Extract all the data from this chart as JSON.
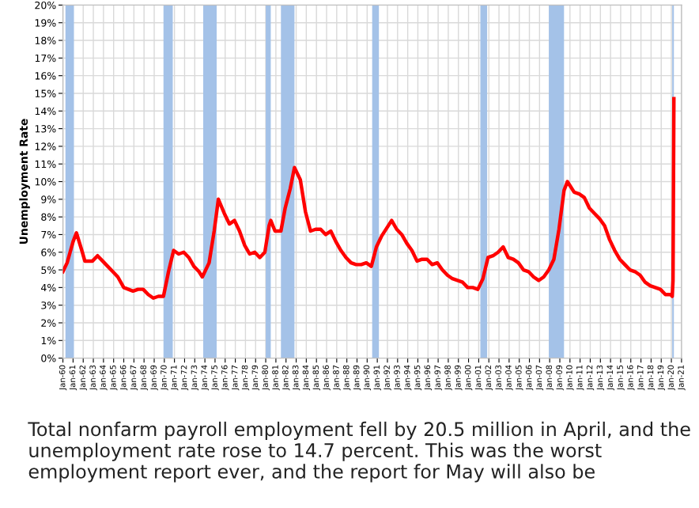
{
  "chart_data": {
    "type": "line",
    "ylabel": "Unemployment Rate",
    "annotations": [
      "Total nonfarm payroll employment fell by 20.5 million in April, and the unemployment rate rose to 14.7 percent. This was the worst employment report ever, and the report for May will also be"
    ],
    "x": [
      "1960-01",
      "1960-06",
      "1961-01",
      "1961-05",
      "1961-12",
      "1962-03",
      "1962-12",
      "1963-06",
      "1963-12",
      "1964-06",
      "1964-12",
      "1965-06",
      "1966-01",
      "1966-12",
      "1967-06",
      "1967-12",
      "1968-06",
      "1968-12",
      "1969-06",
      "1969-12",
      "1970-06",
      "1970-12",
      "1971-06",
      "1971-12",
      "1972-06",
      "1972-12",
      "1973-06",
      "1973-10",
      "1974-06",
      "1974-12",
      "1975-05",
      "1975-12",
      "1976-06",
      "1976-12",
      "1977-06",
      "1977-12",
      "1978-06",
      "1978-12",
      "1979-06",
      "1979-12",
      "1980-05",
      "1980-07",
      "1980-12",
      "1981-07",
      "1981-12",
      "1982-06",
      "1982-11",
      "1983-06",
      "1983-12",
      "1984-06",
      "1984-12",
      "1985-06",
      "1985-12",
      "1986-06",
      "1986-12",
      "1987-06",
      "1987-12",
      "1988-06",
      "1988-12",
      "1989-06",
      "1989-12",
      "1990-06",
      "1990-12",
      "1991-06",
      "1992-06",
      "1992-12",
      "1993-06",
      "1993-12",
      "1994-06",
      "1994-12",
      "1995-06",
      "1995-12",
      "1996-06",
      "1996-12",
      "1997-06",
      "1997-12",
      "1998-06",
      "1998-12",
      "1999-06",
      "1999-12",
      "2000-06",
      "2000-12",
      "2001-06",
      "2001-12",
      "2002-06",
      "2002-12",
      "2003-06",
      "2003-12",
      "2004-06",
      "2004-12",
      "2005-06",
      "2005-12",
      "2006-06",
      "2006-12",
      "2007-06",
      "2007-12",
      "2008-06",
      "2008-12",
      "2009-06",
      "2009-10",
      "2010-06",
      "2010-12",
      "2011-06",
      "2011-12",
      "2012-06",
      "2012-12",
      "2013-06",
      "2013-12",
      "2014-06",
      "2014-12",
      "2015-06",
      "2015-12",
      "2016-06",
      "2016-12",
      "2017-06",
      "2017-12",
      "2018-06",
      "2018-12",
      "2019-06",
      "2019-12",
      "2020-02",
      "2020-03",
      "2020-04"
    ],
    "series": [
      {
        "color": "#ff0000",
        "values": [
          4.9,
          5.4,
          6.6,
          7.1,
          6.0,
          5.5,
          5.5,
          5.8,
          5.5,
          5.2,
          4.9,
          4.6,
          4.0,
          3.8,
          3.9,
          3.9,
          3.6,
          3.4,
          3.5,
          3.5,
          4.9,
          6.1,
          5.9,
          6.0,
          5.7,
          5.2,
          4.9,
          4.6,
          5.4,
          7.2,
          9.0,
          8.2,
          7.6,
          7.8,
          7.2,
          6.4,
          5.9,
          6.0,
          5.7,
          6.0,
          7.5,
          7.8,
          7.2,
          7.2,
          8.5,
          9.6,
          10.8,
          10.1,
          8.3,
          7.2,
          7.3,
          7.3,
          7.0,
          7.2,
          6.6,
          6.1,
          5.7,
          5.4,
          5.3,
          5.3,
          5.4,
          5.2,
          6.3,
          6.9,
          7.8,
          7.3,
          7.0,
          6.5,
          6.1,
          5.5,
          5.6,
          5.6,
          5.3,
          5.4,
          5.0,
          4.7,
          4.5,
          4.4,
          4.3,
          4.0,
          4.0,
          3.9,
          4.5,
          5.7,
          5.8,
          6.0,
          6.3,
          5.7,
          5.6,
          5.4,
          5.0,
          4.9,
          4.6,
          4.4,
          4.6,
          5.0,
          5.6,
          7.3,
          9.5,
          10.0,
          9.4,
          9.3,
          9.1,
          8.5,
          8.2,
          7.9,
          7.5,
          6.7,
          6.1,
          5.6,
          5.3,
          5.0,
          4.9,
          4.7,
          4.3,
          4.1,
          4.0,
          3.9,
          3.6,
          3.6,
          3.5,
          4.4,
          14.7
        ]
      }
    ],
    "bands": [
      {
        "axis": "x",
        "from": "1960-04",
        "to": "1961-02",
        "color": "#a4c2e8"
      },
      {
        "axis": "x",
        "from": "1969-12",
        "to": "1970-11",
        "color": "#a4c2e8"
      },
      {
        "axis": "x",
        "from": "1973-11",
        "to": "1975-03",
        "color": "#a4c2e8"
      },
      {
        "axis": "x",
        "from": "1980-01",
        "to": "1980-07",
        "color": "#a4c2e8"
      },
      {
        "axis": "x",
        "from": "1981-07",
        "to": "1982-11",
        "color": "#a4c2e8"
      },
      {
        "axis": "x",
        "from": "1990-07",
        "to": "1991-03",
        "color": "#a4c2e8"
      },
      {
        "axis": "x",
        "from": "2001-03",
        "to": "2001-11",
        "color": "#a4c2e8"
      },
      {
        "axis": "x",
        "from": "2007-12",
        "to": "2009-06",
        "color": "#a4c2e8"
      },
      {
        "axis": "x",
        "from": "2020-02",
        "to": "2020-04",
        "color": "#a4c2e8"
      }
    ],
    "xlim": [
      "1960-01",
      "2021-01"
    ],
    "xticks": [
      {
        "value": "1960-01",
        "label": "Jan-60"
      },
      {
        "value": "1961-01",
        "label": "Jan-61"
      },
      {
        "value": "1962-01",
        "label": "Jan-62"
      },
      {
        "value": "1963-01",
        "label": "Jan-63"
      },
      {
        "value": "1964-01",
        "label": "Jan-64"
      },
      {
        "value": "1965-01",
        "label": "Jan-65"
      },
      {
        "value": "1966-01",
        "label": "Jan-66"
      },
      {
        "value": "1967-01",
        "label": "Jan-67"
      },
      {
        "value": "1968-01",
        "label": "Jan-68"
      },
      {
        "value": "1969-01",
        "label": "Jan-69"
      },
      {
        "value": "1970-01",
        "label": "Jan-70"
      },
      {
        "value": "1971-01",
        "label": "Jan-71"
      },
      {
        "value": "1972-01",
        "label": "Jan-72"
      },
      {
        "value": "1973-01",
        "label": "Jan-73"
      },
      {
        "value": "1974-01",
        "label": "Jan-74"
      },
      {
        "value": "1975-01",
        "label": "Jan-75"
      },
      {
        "value": "1976-01",
        "label": "Jan-76"
      },
      {
        "value": "1977-01",
        "label": "Jan-77"
      },
      {
        "value": "1978-01",
        "label": "Jan-78"
      },
      {
        "value": "1979-01",
        "label": "Jan-79"
      },
      {
        "value": "1980-01",
        "label": "Jan-80"
      },
      {
        "value": "1981-01",
        "label": "Jan-81"
      },
      {
        "value": "1982-01",
        "label": "Jan-82"
      },
      {
        "value": "1983-01",
        "label": "Jan-83"
      },
      {
        "value": "1984-01",
        "label": "Jan-84"
      },
      {
        "value": "1985-01",
        "label": "Jan-85"
      },
      {
        "value": "1986-01",
        "label": "Jan-86"
      },
      {
        "value": "1987-01",
        "label": "Jan-87"
      },
      {
        "value": "1988-01",
        "label": "Jan-88"
      },
      {
        "value": "1989-01",
        "label": "Jan-89"
      },
      {
        "value": "1990-01",
        "label": "Jan-90"
      },
      {
        "value": "1991-01",
        "label": "Jan-91"
      },
      {
        "value": "1992-01",
        "label": "Jan-92"
      },
      {
        "value": "1993-01",
        "label": "Jan-93"
      },
      {
        "value": "1994-01",
        "label": "Jan-94"
      },
      {
        "value": "1995-01",
        "label": "Jan-95"
      },
      {
        "value": "1996-01",
        "label": "Jan-96"
      },
      {
        "value": "1997-01",
        "label": "Jan-97"
      },
      {
        "value": "1998-01",
        "label": "Jan-98"
      },
      {
        "value": "1999-01",
        "label": "Jan-99"
      },
      {
        "value": "2000-01",
        "label": "Jan-00"
      },
      {
        "value": "2001-01",
        "label": "Jan-01"
      },
      {
        "value": "2002-01",
        "label": "Jan-02"
      },
      {
        "value": "2003-01",
        "label": "Jan-03"
      },
      {
        "value": "2004-01",
        "label": "Jan-04"
      },
      {
        "value": "2005-01",
        "label": "Jan-05"
      },
      {
        "value": "2006-01",
        "label": "Jan-06"
      },
      {
        "value": "2007-01",
        "label": "Jan-07"
      },
      {
        "value": "2008-01",
        "label": "Jan-08"
      },
      {
        "value": "2009-01",
        "label": "Jan-09"
      },
      {
        "value": "2010-01",
        "label": "Jan-10"
      },
      {
        "value": "2011-01",
        "label": "Jan-11"
      },
      {
        "value": "2012-01",
        "label": "Jan-12"
      },
      {
        "value": "2013-01",
        "label": "Jan-13"
      },
      {
        "value": "2014-01",
        "label": "Jan-14"
      },
      {
        "value": "2015-01",
        "label": "Jan-15"
      },
      {
        "value": "2016-01",
        "label": "Jan-16"
      },
      {
        "value": "2017-01",
        "label": "Jan-17"
      },
      {
        "value": "2018-01",
        "label": "Jan-18"
      },
      {
        "value": "2019-01",
        "label": "Jan-19"
      },
      {
        "value": "2020-01",
        "label": "Jan-20"
      },
      {
        "value": "2021-01",
        "label": "Jan-21"
      }
    ],
    "ylim": [
      0,
      20
    ],
    "yticks": [
      {
        "value": 0,
        "label": "0%"
      },
      {
        "value": 1,
        "label": "1%"
      },
      {
        "value": 2,
        "label": "2%"
      },
      {
        "value": 3,
        "label": "3%"
      },
      {
        "value": 4,
        "label": "4%"
      },
      {
        "value": 5,
        "label": "5%"
      },
      {
        "value": 6,
        "label": "6%"
      },
      {
        "value": 7,
        "label": "7%"
      },
      {
        "value": 8,
        "label": "8%"
      },
      {
        "value": 9,
        "label": "9%"
      },
      {
        "value": 10,
        "label": "10%"
      },
      {
        "value": 11,
        "label": "11%"
      },
      {
        "value": 12,
        "label": "12%"
      },
      {
        "value": 13,
        "label": "13%"
      },
      {
        "value": 14,
        "label": "14%"
      },
      {
        "value": 15,
        "label": "15%"
      },
      {
        "value": 16,
        "label": "16%"
      },
      {
        "value": 17,
        "label": "17%"
      },
      {
        "value": 18,
        "label": "18%"
      },
      {
        "value": 19,
        "label": "19%"
      },
      {
        "value": 20,
        "label": "20%"
      }
    ],
    "grid": true,
    "legend": false
  }
}
